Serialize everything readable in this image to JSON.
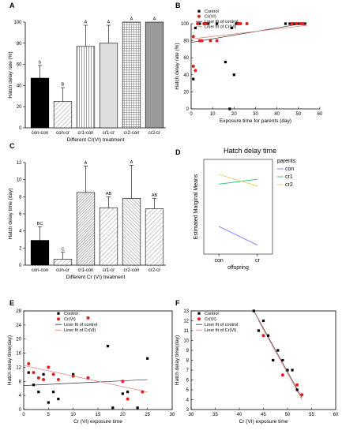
{
  "chart_data": [
    {
      "panel": "A",
      "type": "bar",
      "title": "",
      "xlabel": "Different Cr(VI) treatment",
      "ylabel": "Hatch delay rate (%)",
      "ylim": [
        0,
        100
      ],
      "yticks": [
        0,
        20,
        40,
        60,
        80,
        100
      ],
      "categories": [
        "con-con",
        "con-cr",
        "cr1-con",
        "cr1-cr",
        "cr2-con",
        "cr2-cr"
      ],
      "values": [
        47,
        25,
        77,
        80,
        100,
        100
      ],
      "errors": [
        12,
        13,
        20,
        17,
        0,
        0
      ],
      "significance": [
        "b",
        "B",
        "A",
        "A",
        "A",
        "A"
      ],
      "fills": [
        "solid-black",
        "diagonal-light",
        "vertical-lines",
        "light-gray",
        "grid",
        "dark-gray"
      ]
    },
    {
      "panel": "B",
      "type": "scatter",
      "title": "",
      "xlabel": "Exposure time for parents (day)",
      "ylabel": "Hatch delay rate (%)",
      "xlim": [
        0,
        60
      ],
      "ylim": [
        0,
        100
      ],
      "xticks": [
        0,
        10,
        20,
        30,
        40,
        50,
        60
      ],
      "yticks": [
        0,
        20,
        40,
        60,
        80,
        100
      ],
      "series": [
        {
          "name": "Control",
          "marker": "black-square",
          "x": [
            1,
            2,
            3,
            4,
            6,
            8,
            12,
            16,
            18,
            19,
            20,
            21,
            22,
            23,
            26,
            44,
            46,
            48,
            50,
            52,
            53
          ],
          "y": [
            35,
            95,
            100,
            100,
            100,
            100,
            100,
            55,
            0,
            95,
            40,
            100,
            100,
            100,
            100,
            100,
            100,
            100,
            100,
            100,
            100
          ]
        },
        {
          "name": "Cr(VI)",
          "marker": "red-circle",
          "x": [
            1,
            1,
            2,
            3,
            4,
            5,
            6,
            7,
            9,
            12,
            22,
            23,
            26,
            47,
            49,
            51,
            52
          ],
          "y": [
            50,
            85,
            45,
            100,
            80,
            80,
            100,
            100,
            80,
            80,
            100,
            100,
            100,
            100,
            100,
            100,
            100
          ]
        },
        {
          "name": "Liner fit of control",
          "type": "line",
          "color": "#333333",
          "x": [
            0,
            54
          ],
          "y": [
            78,
            101
          ]
        },
        {
          "name": "Liner fit of Cr(VI)",
          "type": "line",
          "color": "#e07070",
          "x": [
            0,
            54
          ],
          "y": [
            82,
            98
          ]
        }
      ]
    },
    {
      "panel": "C",
      "type": "bar",
      "title": "",
      "xlabel": "Different Cr (VI) treatment",
      "ylabel": "Hatch delay time (day)",
      "ylim": [
        0,
        12
      ],
      "yticks": [
        0,
        2,
        4,
        6,
        8,
        10,
        12
      ],
      "categories": [
        "con-con",
        "con-cr",
        "cr1-con",
        "cr1-cr",
        "cr2-con",
        "cr2-cr"
      ],
      "values": [
        2.9,
        0.7,
        8.5,
        6.7,
        7.8,
        6.6
      ],
      "errors": [
        1.6,
        0.8,
        3.1,
        1.3,
        3.9,
        1.2
      ],
      "significance": [
        "BC",
        "C",
        "A",
        "AB",
        "A",
        "AB"
      ],
      "fills": [
        "solid-black",
        "diagonal-light",
        "diagonal-dense",
        "diagonal-light",
        "diagonal-medium",
        "diagonal-light"
      ]
    },
    {
      "panel": "D",
      "type": "line",
      "title": "Hatch delay time",
      "xlabel": "offspring",
      "ylabel": "Estimated Marginal Means",
      "categories": [
        "con",
        "cr"
      ],
      "legend_title": "parents",
      "series": [
        {
          "name": "con",
          "color": "#8080ff",
          "values": [
            2.5,
            0.6
          ]
        },
        {
          "name": "cr1",
          "color": "#40c080",
          "values": [
            6.8,
            7.3
          ]
        },
        {
          "name": "cr2",
          "color": "#e8d070",
          "values": [
            7.8,
            6.6
          ]
        }
      ]
    },
    {
      "panel": "E",
      "type": "scatter",
      "title": "",
      "xlabel": "Cr (VI) exposure time",
      "ylabel": "Hatch delay time(day)",
      "xlim": [
        0,
        30
      ],
      "ylim": [
        0,
        28
      ],
      "xticks": [
        0,
        5,
        10,
        15,
        20,
        25,
        30
      ],
      "yticks": [
        0,
        4,
        8,
        12,
        16,
        20,
        24,
        28
      ],
      "series": [
        {
          "name": "Control",
          "marker": "black-square",
          "x": [
            1,
            2,
            3,
            4,
            5,
            6,
            7,
            10,
            13,
            17,
            18,
            20,
            21,
            23,
            25
          ],
          "y": [
            10.5,
            7.0,
            5.0,
            10.0,
            2.0,
            5.0,
            3.0,
            10.0,
            9.0,
            18.0,
            0.5,
            4.5,
            5.0,
            0.5,
            14.5
          ]
        },
        {
          "name": "Cr(VI)",
          "marker": "red-circle",
          "x": [
            1,
            2,
            3,
            4,
            5,
            6,
            7,
            10,
            13,
            20,
            21,
            24,
            13
          ],
          "y": [
            13.0,
            10.5,
            9.0,
            8.5,
            12.0,
            10.0,
            8.5,
            9.5,
            9.0,
            8.0,
            3.0,
            5.0,
            26.0
          ]
        },
        {
          "name": "Liner fit of control",
          "type": "line",
          "color": "#333333",
          "x": [
            0,
            25
          ],
          "y": [
            6.8,
            8.5
          ]
        },
        {
          "name": "Liner fit of Cr(VI)",
          "type": "line",
          "color": "#e07070",
          "x": [
            0,
            25
          ],
          "y": [
            12.5,
            5.0
          ]
        }
      ]
    },
    {
      "panel": "F",
      "type": "scatter",
      "title": "",
      "xlabel": "Cr (VI) exposure time",
      "ylabel": "Hatch delay time(day)",
      "xlim": [
        30,
        60
      ],
      "ylim": [
        3,
        13
      ],
      "xticks": [
        30,
        35,
        40,
        45,
        50,
        55,
        60
      ],
      "yticks": [
        3,
        4,
        5,
        6,
        7,
        8,
        9,
        10,
        11,
        12,
        13
      ],
      "series": [
        {
          "name": "Control",
          "marker": "black-square",
          "x": [
            43,
            44,
            45,
            46,
            47,
            48,
            49,
            50,
            51,
            52,
            53
          ],
          "y": [
            13.0,
            11.0,
            12.0,
            10.5,
            8.0,
            9.0,
            8.0,
            7.0,
            7.0,
            5.0,
            4.5
          ]
        },
        {
          "name": "Cr(VI)",
          "marker": "red-circle",
          "x": [
            45,
            49,
            52,
            53
          ],
          "y": [
            10.5,
            6.5,
            5.5,
            4.5
          ]
        },
        {
          "name": "Liner fit of control",
          "type": "line",
          "color": "#333333",
          "x": [
            43,
            53
          ],
          "y": [
            13.0,
            4.2
          ]
        },
        {
          "name": "Liner fit of Cr(VI)",
          "type": "line",
          "color": "#e07070",
          "x": [
            44,
            53
          ],
          "y": [
            12.0,
            4.0
          ]
        }
      ]
    }
  ]
}
